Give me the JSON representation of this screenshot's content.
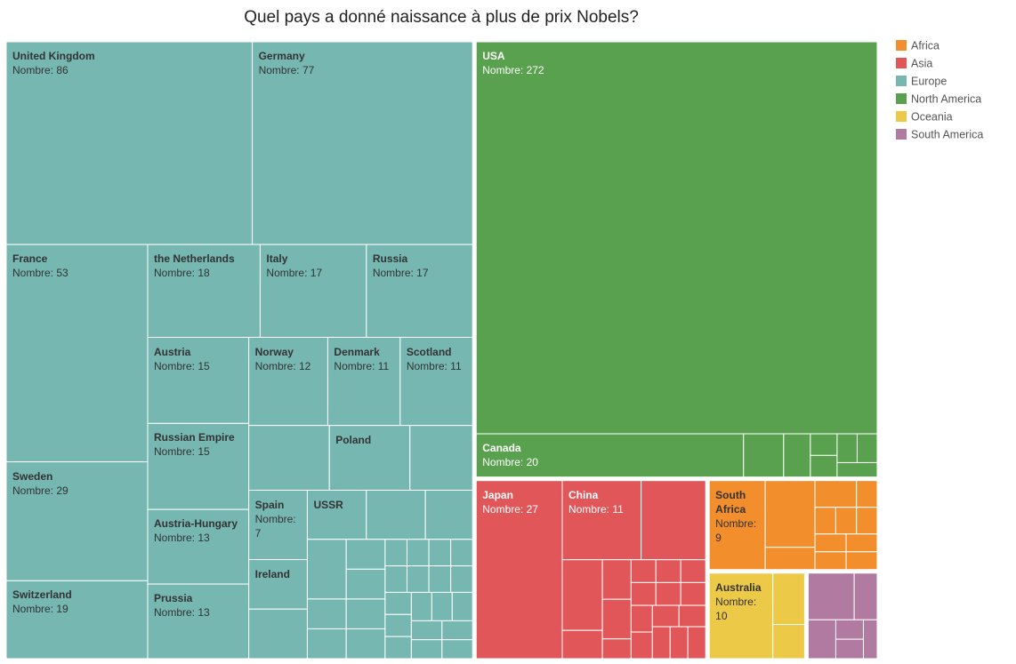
{
  "chart_data": {
    "type": "treemap",
    "title": "Quel pays a donné naissance à plus de prix Nobels?",
    "series": [
      {
        "name": "Africa",
        "color": "#f28e2b",
        "categories": [
          "South Africa",
          null,
          null,
          null,
          null,
          null,
          null,
          null,
          null,
          null,
          null,
          null
        ],
        "values": [
          9,
          6,
          2,
          2,
          1,
          1,
          1,
          1,
          1,
          1,
          1,
          1
        ],
        "value_labels": [
          "Nombre: 9",
          null,
          null,
          null,
          null,
          null,
          null,
          null,
          null,
          null,
          null,
          null
        ]
      },
      {
        "name": "Asia",
        "color": "#e15759",
        "categories": [
          "Japan",
          "China",
          null,
          null,
          null,
          null,
          null,
          null,
          null,
          null,
          null,
          null,
          null,
          null,
          null,
          null,
          null,
          null,
          null,
          null,
          null
        ],
        "values": [
          27,
          11,
          9,
          5,
          2,
          2,
          2,
          1,
          1,
          1,
          1,
          1,
          1,
          1,
          1,
          1,
          1,
          1,
          1,
          1,
          1
        ],
        "value_labels": [
          "Nombre: 27",
          "Nombre: 11",
          null,
          null,
          null,
          null,
          null,
          null,
          null,
          null,
          null,
          null,
          null,
          null,
          null,
          null,
          null,
          null,
          null,
          null,
          null
        ]
      },
      {
        "name": "Europe",
        "color": "#76b7b2",
        "categories": [
          "United Kingdom",
          "Germany",
          "France",
          "Sweden",
          "Switzerland",
          "the Netherlands",
          "Italy",
          "Russia",
          "Austria",
          "Russian Empire",
          "Austria-Hungary",
          "Prussia",
          "Norway",
          "Denmark",
          "Scotland",
          null,
          "Poland",
          null,
          "Spain",
          "Ireland",
          null,
          "USSR",
          null,
          null,
          null,
          null,
          null,
          null,
          null,
          null,
          null,
          null,
          null,
          null,
          null,
          null,
          null,
          null,
          null,
          null,
          null,
          null,
          null,
          null,
          null,
          null,
          null,
          null,
          null
        ],
        "values": [
          86,
          77,
          53,
          29,
          19,
          18,
          17,
          17,
          15,
          15,
          13,
          13,
          12,
          11,
          11,
          9,
          9,
          7,
          7,
          5,
          5,
          5,
          5,
          4,
          4,
          2,
          2,
          2,
          2,
          2,
          2,
          1,
          1,
          1,
          1,
          1,
          1,
          1,
          1,
          1,
          1,
          1,
          1,
          1,
          1,
          1,
          1,
          1,
          1
        ],
        "value_labels": [
          "Nombre: 86",
          "Nombre: 77",
          "Nombre: 53",
          "Nombre: 29",
          "Nombre: 19",
          "Nombre: 18",
          "Nombre: 17",
          "Nombre: 17",
          "Nombre: 15",
          "Nombre: 15",
          "Nombre: 13",
          "Nombre: 13",
          "Nombre: 12",
          "Nombre: 11",
          "Nombre: 11",
          null,
          null,
          null,
          "Nombre: 7",
          null,
          null,
          null,
          null,
          null,
          null,
          null,
          null,
          null,
          null,
          null,
          null,
          null,
          null,
          null,
          null,
          null,
          null,
          null,
          null,
          null,
          null,
          null,
          null,
          null,
          null,
          null,
          null,
          null,
          null
        ]
      },
      {
        "name": "North America",
        "color": "#59a14f",
        "categories": [
          "USA",
          "Canada",
          null,
          null,
          null,
          null,
          null,
          null,
          null
        ],
        "values": [
          272,
          20,
          3,
          2,
          1,
          1,
          1,
          1,
          1
        ],
        "value_labels": [
          "Nombre: 272",
          "Nombre: 20",
          null,
          null,
          null,
          null,
          null,
          null,
          null
        ]
      },
      {
        "name": "Oceania",
        "color": "#edc948",
        "categories": [
          "Australia",
          null,
          null
        ],
        "values": [
          10,
          3,
          2
        ],
        "value_labels": [
          "Nombre: 10",
          null,
          null
        ]
      },
      {
        "name": "South America",
        "color": "#b07aa1",
        "categories": [
          null,
          null,
          null,
          null,
          null,
          null
        ],
        "values": [
          4,
          2,
          2,
          1,
          1,
          1
        ],
        "value_labels": [
          null,
          null,
          null,
          null,
          null,
          null
        ]
      }
    ]
  }
}
